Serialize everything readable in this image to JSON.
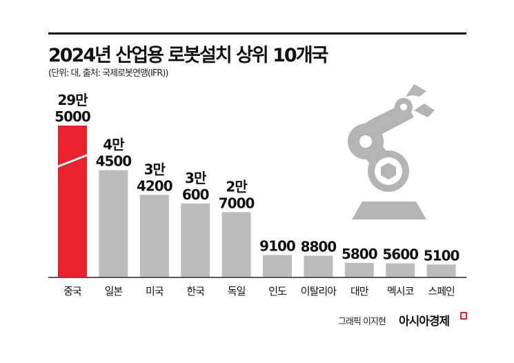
{
  "title": "2024년 산업용 로봇설치 상위 10개국",
  "subtitle": "(단위: 대, 출처: 국제로봇연맹(IFR))",
  "credit": "그래픽 이지현",
  "logo": "아시아경제",
  "colors": {
    "highlight": "#e8212a",
    "bar": "#bcbcbd",
    "icon": "#b4b4b5",
    "baseline": "#222222"
  },
  "icon": "robot-arm-icon",
  "chart_data": {
    "type": "bar",
    "title": "2024년 산업용 로봇설치 상위 10개국",
    "unit": "대",
    "categories": [
      "중국",
      "일본",
      "미국",
      "한국",
      "독일",
      "인도",
      "이탈리아",
      "대만",
      "멕시코",
      "스페인"
    ],
    "values": [
      295000,
      44500,
      34200,
      30600,
      27000,
      9100,
      8800,
      5800,
      5600,
      5100
    ],
    "data_labels": [
      [
        "29만",
        "5000"
      ],
      [
        "4만",
        "4500"
      ],
      [
        "3만",
        "4200"
      ],
      [
        "3만",
        "600"
      ],
      [
        "2만",
        "7000"
      ],
      [
        "9100"
      ],
      [
        "8800"
      ],
      [
        "5800"
      ],
      [
        "5600"
      ],
      [
        "5100"
      ]
    ],
    "broken_axis_bar": "중국",
    "highlight": "중국",
    "grid": false
  }
}
